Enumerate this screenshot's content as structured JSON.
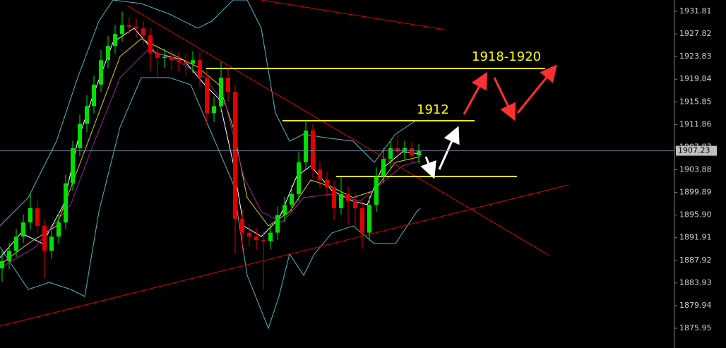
{
  "chart_data": {
    "type": "candlestick",
    "up_color": "#00e000",
    "down_color": "#e00000",
    "ylim": [
      1872.47,
      1933.8
    ],
    "yticks": [
      1931.81,
      1927.82,
      1923.83,
      1919.84,
      1915.85,
      1911.86,
      1907.87,
      1903.88,
      1899.89,
      {
        "value": 1895.9,
        "label": "1895.90"
      },
      1891.91,
      1887.92,
      1883.93,
      1879.94,
      1875.95
    ],
    "last_price": 1907.23,
    "annotations": [
      "1918-1920",
      "1912"
    ],
    "open": [
      1886.5,
      1887.8,
      1889.6,
      1892.1,
      1894.6,
      1897.1,
      1894.0,
      1889.6,
      1892.1,
      1894.6,
      1901.5,
      1907.7,
      1912.0,
      1915.1,
      1918.9,
      1923.2,
      1925.7,
      1927.8,
      1929.4,
      1929.1,
      1928.8,
      1927.6,
      1924.5,
      1923.6,
      1923.8,
      1923.2,
      1922.9,
      1922.6,
      1923.2,
      1920.1,
      1913.9,
      1915.1,
      1920.1,
      1917.6,
      1895.2,
      1892.8,
      1892.1,
      1891.5,
      1891.3,
      1892.8,
      1895.9,
      1897.7,
      1899.6,
      1905.2,
      1910.8,
      1903.9,
      1902.1,
      1900.8,
      1897.1,
      1899.6,
      1898.4,
      1897.1,
      1892.8,
      1897.7,
      1902.7,
      1905.8,
      1907.7,
      1907.1,
      1907.7,
      1906.4
    ],
    "high": [
      1889.5,
      1891.0,
      1893.5,
      1896.0,
      1899.8,
      1898.5,
      1895.2,
      1893.6,
      1896.2,
      1903.0,
      1909.0,
      1913.6,
      1917.0,
      1920.5,
      1925.0,
      1927.5,
      1929.4,
      1931.8,
      1930.8,
      1930.5,
      1930.1,
      1928.9,
      1925.8,
      1925.2,
      1924.9,
      1924.6,
      1924.4,
      1924.8,
      1924.6,
      1921.4,
      1916.8,
      1922.9,
      1921.7,
      1918.9,
      1897.0,
      1894.3,
      1893.6,
      1893.0,
      1894.1,
      1897.4,
      1899.1,
      1901.2,
      1907.0,
      1912.6,
      1911.9,
      1905.4,
      1903.5,
      1902.0,
      1902.5,
      1901.0,
      1899.9,
      1898.4,
      1899.3,
      1904.3,
      1907.7,
      1909.1,
      1910.6,
      1909.0,
      1908.8,
      1908.4
    ],
    "low": [
      1884.2,
      1886.4,
      1888.5,
      1891.0,
      1893.3,
      1892.6,
      1884.8,
      1888.2,
      1890.9,
      1893.5,
      1900.2,
      1906.3,
      1910.5,
      1913.8,
      1917.6,
      1921.8,
      1924.3,
      1926.5,
      1927.8,
      1927.2,
      1925.9,
      1921.3,
      1920.0,
      1921.9,
      1921.5,
      1921.2,
      1920.5,
      1921.0,
      1918.4,
      1911.8,
      1912.3,
      1914.0,
      1915.9,
      1889.1,
      1889.5,
      1890.4,
      1889.8,
      1882.8,
      1889.9,
      1891.5,
      1894.6,
      1896.4,
      1898.3,
      1904.0,
      1902.4,
      1900.7,
      1899.2,
      1895.0,
      1896.0,
      1894.2,
      1893.7,
      1890.0,
      1891.4,
      1896.5,
      1901.5,
      1904.3,
      1905.6,
      1905.7,
      1904.9,
      1905.0
    ],
    "close": [
      1887.8,
      1889.6,
      1892.1,
      1894.6,
      1897.1,
      1894.0,
      1889.6,
      1892.1,
      1894.6,
      1901.5,
      1907.7,
      1912.0,
      1915.1,
      1918.9,
      1923.2,
      1925.7,
      1927.8,
      1929.4,
      1929.1,
      1928.8,
      1927.6,
      1924.5,
      1923.6,
      1923.8,
      1923.2,
      1922.9,
      1922.6,
      1923.2,
      1920.1,
      1913.9,
      1915.1,
      1920.1,
      1917.6,
      1895.2,
      1892.8,
      1892.1,
      1891.5,
      1891.3,
      1892.8,
      1895.9,
      1897.7,
      1899.6,
      1905.2,
      1910.8,
      1903.9,
      1902.1,
      1900.8,
      1897.1,
      1899.6,
      1898.4,
      1897.1,
      1892.8,
      1897.7,
      1902.7,
      1905.8,
      1907.7,
      1907.1,
      1907.7,
      1906.4,
      1907.23
    ]
  }
}
